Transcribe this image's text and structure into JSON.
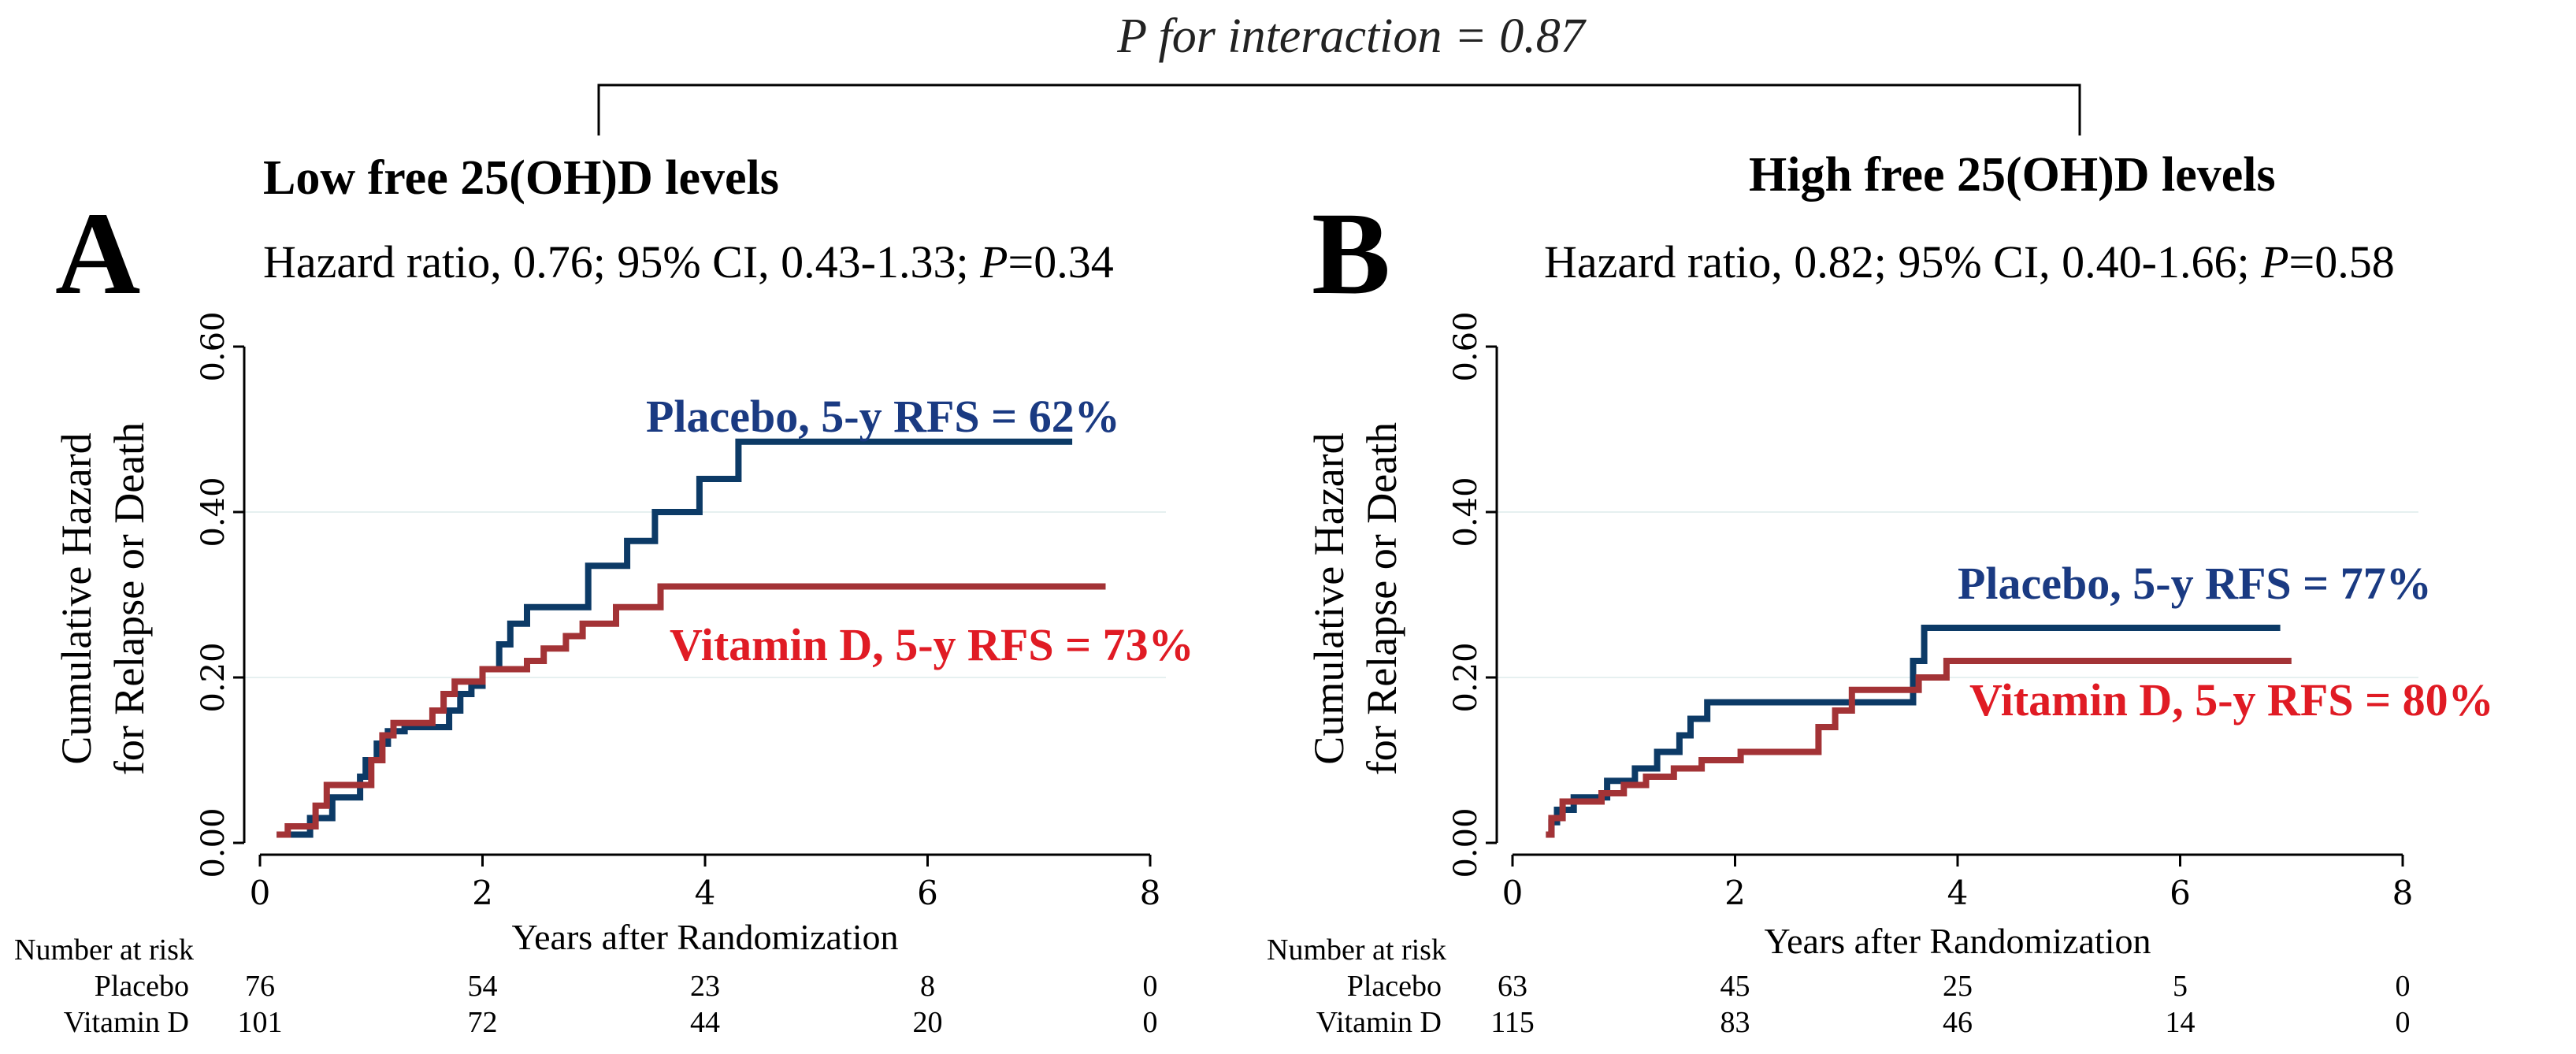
{
  "interaction_label": "P for interaction = 0.87",
  "colors": {
    "placebo": "#0c3a66",
    "vitamin_d": "#a33336",
    "placebo_label": "#1a3a82",
    "vitamin_label": "#e01b24",
    "axis": "#000000",
    "grid": "#e6f0f0"
  },
  "chart_data": [
    {
      "type": "line",
      "panel_letter": "A",
      "title": "Low free 25(OH)D levels",
      "hazard_text": "Hazard ratio, 0.76; 95% CI, 0.43-1.33; ",
      "p_label": "P",
      "p_value": "=0.34",
      "xlabel": "Years after Randomization",
      "ylabel_line1": "Cumulative Hazard",
      "ylabel_line2": "for Relapse or Death",
      "xlim": [
        0,
        8
      ],
      "ylim": [
        0,
        0.6
      ],
      "xticks": [
        "0",
        "2",
        "4",
        "6",
        "8"
      ],
      "yticks": [
        "0.00",
        "0.20",
        "0.40",
        "0.60"
      ],
      "grid_y": [
        0.2,
        0.4
      ],
      "series": [
        {
          "name": "Placebo",
          "label": "Placebo, 5-y RFS = 62%",
          "color": "#0c3a66",
          "points": [
            [
              0.15,
              0.01
            ],
            [
              0.45,
              0.01
            ],
            [
              0.45,
              0.03
            ],
            [
              0.65,
              0.03
            ],
            [
              0.65,
              0.055
            ],
            [
              0.9,
              0.055
            ],
            [
              0.9,
              0.08
            ],
            [
              0.95,
              0.08
            ],
            [
              0.95,
              0.1
            ],
            [
              1.05,
              0.1
            ],
            [
              1.05,
              0.12
            ],
            [
              1.15,
              0.12
            ],
            [
              1.15,
              0.135
            ],
            [
              1.3,
              0.135
            ],
            [
              1.3,
              0.14
            ],
            [
              1.7,
              0.14
            ],
            [
              1.7,
              0.16
            ],
            [
              1.8,
              0.16
            ],
            [
              1.8,
              0.18
            ],
            [
              1.9,
              0.18
            ],
            [
              1.9,
              0.19
            ],
            [
              2.0,
              0.19
            ],
            [
              2.0,
              0.21
            ],
            [
              2.15,
              0.21
            ],
            [
              2.15,
              0.24
            ],
            [
              2.25,
              0.24
            ],
            [
              2.25,
              0.265
            ],
            [
              2.4,
              0.265
            ],
            [
              2.4,
              0.285
            ],
            [
              2.95,
              0.285
            ],
            [
              2.95,
              0.335
            ],
            [
              3.3,
              0.335
            ],
            [
              3.3,
              0.365
            ],
            [
              3.55,
              0.365
            ],
            [
              3.55,
              0.4
            ],
            [
              3.95,
              0.4
            ],
            [
              3.95,
              0.44
            ],
            [
              4.3,
              0.44
            ],
            [
              4.3,
              0.485
            ],
            [
              7.3,
              0.485
            ]
          ]
        },
        {
          "name": "Vitamin D",
          "label": "Vitamin D, 5-y RFS = 73%",
          "color": "#a33336",
          "points": [
            [
              0.15,
              0.01
            ],
            [
              0.25,
              0.01
            ],
            [
              0.25,
              0.02
            ],
            [
              0.5,
              0.02
            ],
            [
              0.5,
              0.045
            ],
            [
              0.6,
              0.045
            ],
            [
              0.6,
              0.07
            ],
            [
              1.0,
              0.07
            ],
            [
              1.0,
              0.1
            ],
            [
              1.1,
              0.1
            ],
            [
              1.1,
              0.13
            ],
            [
              1.2,
              0.13
            ],
            [
              1.2,
              0.145
            ],
            [
              1.55,
              0.145
            ],
            [
              1.55,
              0.16
            ],
            [
              1.65,
              0.16
            ],
            [
              1.65,
              0.18
            ],
            [
              1.75,
              0.18
            ],
            [
              1.75,
              0.195
            ],
            [
              2.0,
              0.195
            ],
            [
              2.0,
              0.21
            ],
            [
              2.4,
              0.21
            ],
            [
              2.4,
              0.22
            ],
            [
              2.55,
              0.22
            ],
            [
              2.55,
              0.235
            ],
            [
              2.75,
              0.235
            ],
            [
              2.75,
              0.25
            ],
            [
              2.9,
              0.25
            ],
            [
              2.9,
              0.265
            ],
            [
              3.2,
              0.265
            ],
            [
              3.2,
              0.285
            ],
            [
              3.6,
              0.285
            ],
            [
              3.6,
              0.31
            ],
            [
              7.6,
              0.31
            ]
          ]
        }
      ],
      "risk_table": {
        "header": "Number at risk",
        "rows": [
          {
            "name": "Placebo",
            "values": [
              "76",
              "54",
              "23",
              "8",
              "0"
            ]
          },
          {
            "name": "Vitamin D",
            "values": [
              "101",
              "72",
              "44",
              "20",
              "0"
            ]
          }
        ]
      }
    },
    {
      "type": "line",
      "panel_letter": "B",
      "title": "High free 25(OH)D levels",
      "hazard_text": "Hazard ratio, 0.82; 95% CI, 0.40-1.66; ",
      "p_label": "P",
      "p_value": "=0.58",
      "xlabel": "Years after Randomization",
      "ylabel_line1": "Cumulative Hazard",
      "ylabel_line2": "for Relapse or Death",
      "xlim": [
        0,
        8
      ],
      "ylim": [
        0,
        0.6
      ],
      "xticks": [
        "0",
        "2",
        "4",
        "6",
        "8"
      ],
      "yticks": [
        "0.00",
        "0.20",
        "0.40",
        "0.60"
      ],
      "grid_y": [
        0.2,
        0.4
      ],
      "series": [
        {
          "name": "Placebo",
          "label": "Placebo, 5-y RFS = 77%",
          "color": "#0c3a66",
          "points": [
            [
              0.3,
              0.01
            ],
            [
              0.35,
              0.01
            ],
            [
              0.35,
              0.025
            ],
            [
              0.4,
              0.025
            ],
            [
              0.4,
              0.04
            ],
            [
              0.55,
              0.04
            ],
            [
              0.55,
              0.055
            ],
            [
              0.85,
              0.055
            ],
            [
              0.85,
              0.075
            ],
            [
              1.1,
              0.075
            ],
            [
              1.1,
              0.09
            ],
            [
              1.3,
              0.09
            ],
            [
              1.3,
              0.11
            ],
            [
              1.5,
              0.11
            ],
            [
              1.5,
              0.13
            ],
            [
              1.6,
              0.13
            ],
            [
              1.6,
              0.15
            ],
            [
              1.75,
              0.15
            ],
            [
              1.75,
              0.17
            ],
            [
              3.6,
              0.17
            ],
            [
              3.6,
              0.22
            ],
            [
              3.7,
              0.22
            ],
            [
              3.7,
              0.26
            ],
            [
              6.9,
              0.26
            ]
          ]
        },
        {
          "name": "Vitamin D",
          "label": "Vitamin D, 5-y RFS = 80%",
          "color": "#a33336",
          "points": [
            [
              0.3,
              0.01
            ],
            [
              0.35,
              0.01
            ],
            [
              0.35,
              0.03
            ],
            [
              0.45,
              0.03
            ],
            [
              0.45,
              0.05
            ],
            [
              0.8,
              0.05
            ],
            [
              0.8,
              0.06
            ],
            [
              1.0,
              0.06
            ],
            [
              1.0,
              0.07
            ],
            [
              1.2,
              0.07
            ],
            [
              1.2,
              0.08
            ],
            [
              1.45,
              0.08
            ],
            [
              1.45,
              0.09
            ],
            [
              1.7,
              0.09
            ],
            [
              1.7,
              0.1
            ],
            [
              2.05,
              0.1
            ],
            [
              2.05,
              0.11
            ],
            [
              2.75,
              0.11
            ],
            [
              2.75,
              0.14
            ],
            [
              2.9,
              0.14
            ],
            [
              2.9,
              0.16
            ],
            [
              3.05,
              0.16
            ],
            [
              3.05,
              0.185
            ],
            [
              3.65,
              0.185
            ],
            [
              3.65,
              0.2
            ],
            [
              3.9,
              0.2
            ],
            [
              3.9,
              0.22
            ],
            [
              7.0,
              0.22
            ]
          ]
        }
      ],
      "risk_table": {
        "header": "Number at risk",
        "rows": [
          {
            "name": "Placebo",
            "values": [
              "63",
              "45",
              "25",
              "5",
              "0"
            ]
          },
          {
            "name": "Vitamin D",
            "values": [
              "115",
              "83",
              "46",
              "14",
              "0"
            ]
          }
        ]
      }
    }
  ]
}
